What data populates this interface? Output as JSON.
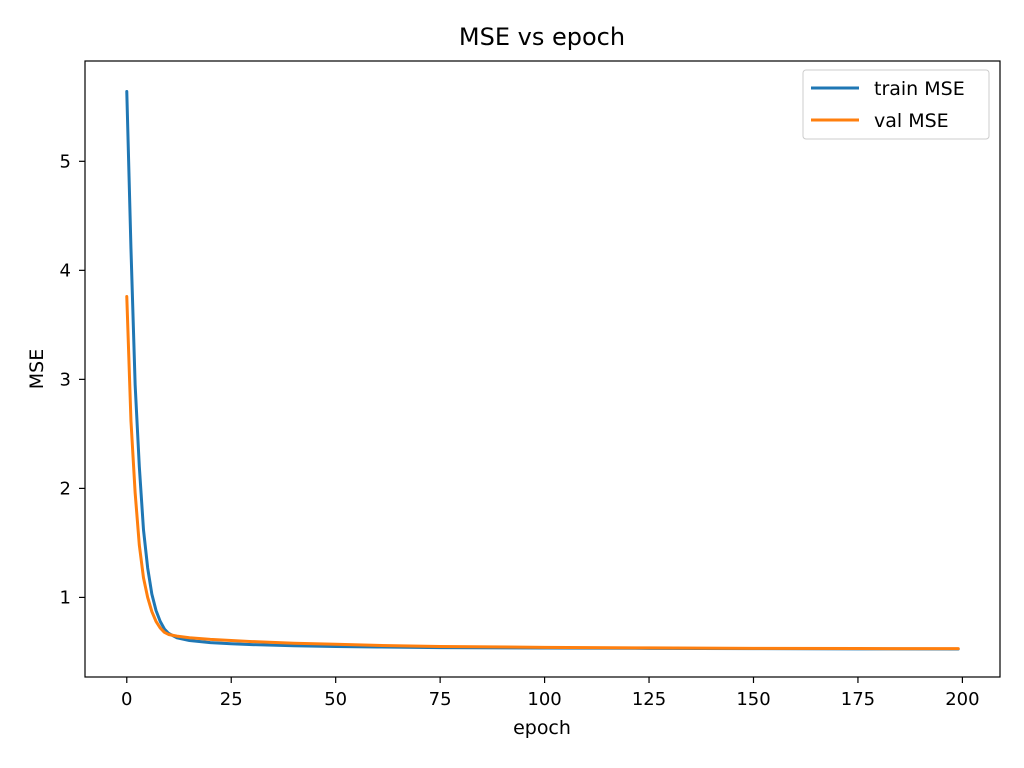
{
  "chart_data": {
    "type": "line",
    "title": "MSE vs epoch",
    "xlabel": "epoch",
    "ylabel": "MSE",
    "xlim": [
      -10,
      209
    ],
    "ylim": [
      0.27,
      5.92
    ],
    "xticks": [
      0,
      25,
      50,
      75,
      100,
      125,
      150,
      175,
      200
    ],
    "yticks": [
      1,
      2,
      3,
      4,
      5
    ],
    "grid": false,
    "legend_position": "top-right",
    "x_range": [
      0,
      199
    ],
    "series": [
      {
        "name": "train MSE",
        "color": "#1f77b4",
        "points": [
          [
            0,
            5.64
          ],
          [
            1,
            4.2
          ],
          [
            2,
            2.95
          ],
          [
            3,
            2.2
          ],
          [
            4,
            1.62
          ],
          [
            5,
            1.27
          ],
          [
            6,
            1.03
          ],
          [
            7,
            0.88
          ],
          [
            8,
            0.78
          ],
          [
            9,
            0.71
          ],
          [
            10,
            0.67
          ],
          [
            12,
            0.63
          ],
          [
            15,
            0.605
          ],
          [
            20,
            0.585
          ],
          [
            25,
            0.575
          ],
          [
            30,
            0.567
          ],
          [
            40,
            0.557
          ],
          [
            50,
            0.55
          ],
          [
            60,
            0.545
          ],
          [
            75,
            0.54
          ],
          [
            100,
            0.536
          ],
          [
            125,
            0.533
          ],
          [
            150,
            0.53
          ],
          [
            175,
            0.528
          ],
          [
            199,
            0.527
          ]
        ]
      },
      {
        "name": "val MSE",
        "color": "#ff7f0e",
        "points": [
          [
            0,
            3.76
          ],
          [
            1,
            2.62
          ],
          [
            2,
            1.96
          ],
          [
            3,
            1.48
          ],
          [
            4,
            1.18
          ],
          [
            5,
            1.0
          ],
          [
            6,
            0.87
          ],
          [
            7,
            0.78
          ],
          [
            8,
            0.72
          ],
          [
            9,
            0.68
          ],
          [
            10,
            0.66
          ],
          [
            12,
            0.645
          ],
          [
            15,
            0.63
          ],
          [
            20,
            0.615
          ],
          [
            25,
            0.605
          ],
          [
            30,
            0.595
          ],
          [
            40,
            0.58
          ],
          [
            50,
            0.57
          ],
          [
            60,
            0.56
          ],
          [
            75,
            0.55
          ],
          [
            100,
            0.542
          ],
          [
            125,
            0.537
          ],
          [
            150,
            0.533
          ],
          [
            175,
            0.531
          ],
          [
            199,
            0.53
          ]
        ]
      }
    ]
  }
}
